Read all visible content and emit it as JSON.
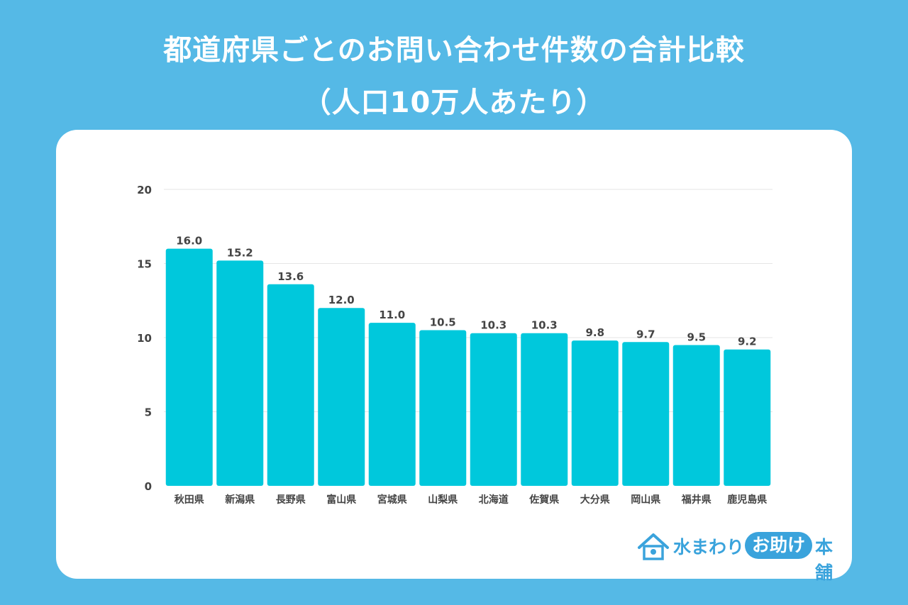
{
  "title_line1": "都道府県ごとのお問い合わせ件数の合計比較",
  "title_line2": "（人口10万人あたり）",
  "colors": {
    "background": "#55b9e6",
    "bar": "#00c8dc",
    "card": "#ffffff",
    "brand": "#3aa3dc"
  },
  "logo": {
    "pre": "水まわり",
    "pill": "お助け",
    "post": "本舗",
    "icon": "house-icon"
  },
  "chart_data": {
    "type": "bar",
    "categories": [
      "秋田県",
      "新潟県",
      "長野県",
      "富山県",
      "宮城県",
      "山梨県",
      "北海道",
      "佐賀県",
      "大分県",
      "岡山県",
      "福井県",
      "鹿児島県"
    ],
    "values": [
      16.0,
      15.2,
      13.6,
      12.0,
      11.0,
      10.5,
      10.3,
      10.3,
      9.8,
      9.7,
      9.5,
      9.2
    ],
    "value_labels": [
      "16.0",
      "15.2",
      "13.6",
      "12.0",
      "11.0",
      "10.5",
      "10.3",
      "10.3",
      "9.8",
      "9.7",
      "9.5",
      "9.2"
    ],
    "yticks": [
      0,
      5,
      10,
      15,
      20
    ],
    "ylim": [
      0,
      20
    ],
    "grid": true
  }
}
